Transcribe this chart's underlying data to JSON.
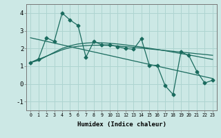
{
  "xlabel": "Humidex (Indice chaleur)",
  "x": [
    0,
    1,
    2,
    3,
    4,
    5,
    6,
    7,
    8,
    9,
    10,
    11,
    12,
    13,
    14,
    15,
    16,
    17,
    18,
    19,
    20,
    21,
    22,
    23
  ],
  "y_main": [
    1.2,
    1.4,
    2.6,
    2.4,
    4.0,
    3.6,
    3.3,
    1.5,
    2.4,
    2.2,
    2.2,
    2.1,
    2.0,
    1.95,
    2.55,
    1.05,
    1.05,
    -0.1,
    -0.6,
    1.8,
    1.6,
    0.7,
    0.05,
    0.2
  ],
  "y_line1": [
    2.6,
    2.5,
    2.4,
    2.3,
    2.2,
    2.1,
    2.0,
    1.9,
    1.8,
    1.7,
    1.6,
    1.5,
    1.4,
    1.3,
    1.2,
    1.1,
    1.0,
    0.9,
    0.8,
    0.7,
    0.6,
    0.5,
    0.4,
    0.3
  ],
  "y_line2": [
    1.2,
    1.38,
    1.56,
    1.74,
    1.92,
    2.05,
    2.12,
    2.16,
    2.18,
    2.18,
    2.17,
    2.14,
    2.1,
    2.06,
    2.02,
    1.97,
    1.93,
    1.88,
    1.84,
    1.79,
    1.75,
    1.7,
    1.66,
    1.61
  ],
  "y_line3": [
    1.2,
    1.32,
    1.55,
    1.78,
    2.0,
    2.15,
    2.25,
    2.3,
    2.33,
    2.32,
    2.29,
    2.25,
    2.2,
    2.14,
    2.08,
    2.01,
    1.94,
    1.87,
    1.79,
    1.71,
    1.63,
    1.55,
    1.46,
    1.38
  ],
  "line_color": "#1a6b5e",
  "bg_color": "#cce8e5",
  "grid_color": "#aed4d0",
  "ylim": [
    -1.5,
    4.5
  ],
  "xlim": [
    -0.5,
    23.5
  ],
  "yticks": [
    -1,
    0,
    1,
    2,
    3,
    4
  ],
  "xticks": [
    0,
    1,
    2,
    3,
    4,
    5,
    6,
    7,
    8,
    9,
    10,
    11,
    12,
    13,
    14,
    15,
    16,
    17,
    18,
    19,
    20,
    21,
    22,
    23
  ]
}
